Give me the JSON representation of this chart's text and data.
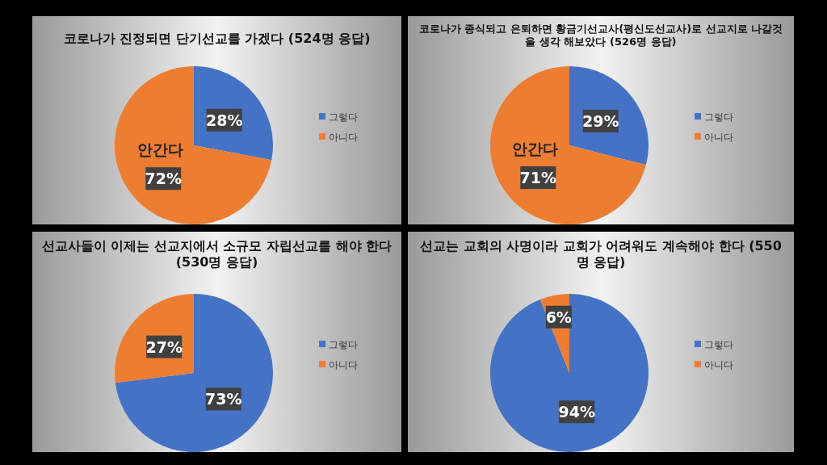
{
  "chart_data": [
    {
      "type": "pie",
      "title": "코로나가 진정되면 단기선교를 가겠다 (524명 응답)",
      "categories": [
        "그렇다",
        "아니다"
      ],
      "values": [
        28,
        72
      ],
      "colors": [
        "#4472c4",
        "#ed7d31"
      ],
      "value_labels": [
        "28%",
        "72%"
      ],
      "legend": "right",
      "annotations": [
        "안간다"
      ]
    },
    {
      "type": "pie",
      "title": "코로나가 종식되고 은퇴하면 황금기선교사(평신도선교사)로 선교지로 나갈것을 생각 해보았다 (526명 응답)",
      "categories": [
        "그렇다",
        "아니다"
      ],
      "values": [
        29,
        71
      ],
      "colors": [
        "#4472c4",
        "#ed7d31"
      ],
      "value_labels": [
        "29%",
        "71%"
      ],
      "legend": "right",
      "annotations": [
        "안간다"
      ]
    },
    {
      "type": "pie",
      "title": "선교사들이 이제는 선교지에서 소규모 자립선교를 해야 한다 (530명 응답)",
      "categories": [
        "그렇다",
        "아니다"
      ],
      "values": [
        73,
        27
      ],
      "colors": [
        "#4472c4",
        "#ed7d31"
      ],
      "value_labels": [
        "73%",
        "27%"
      ],
      "legend": "right"
    },
    {
      "type": "pie",
      "title": "선교는 교회의 사명이라 교회가 어려워도 계속해야 한다 (550명 응답)",
      "categories": [
        "그렇다",
        "아니다"
      ],
      "values": [
        94,
        6
      ],
      "colors": [
        "#4472c4",
        "#ed7d31"
      ],
      "value_labels": [
        "94%",
        "6%"
      ],
      "legend": "right"
    }
  ]
}
